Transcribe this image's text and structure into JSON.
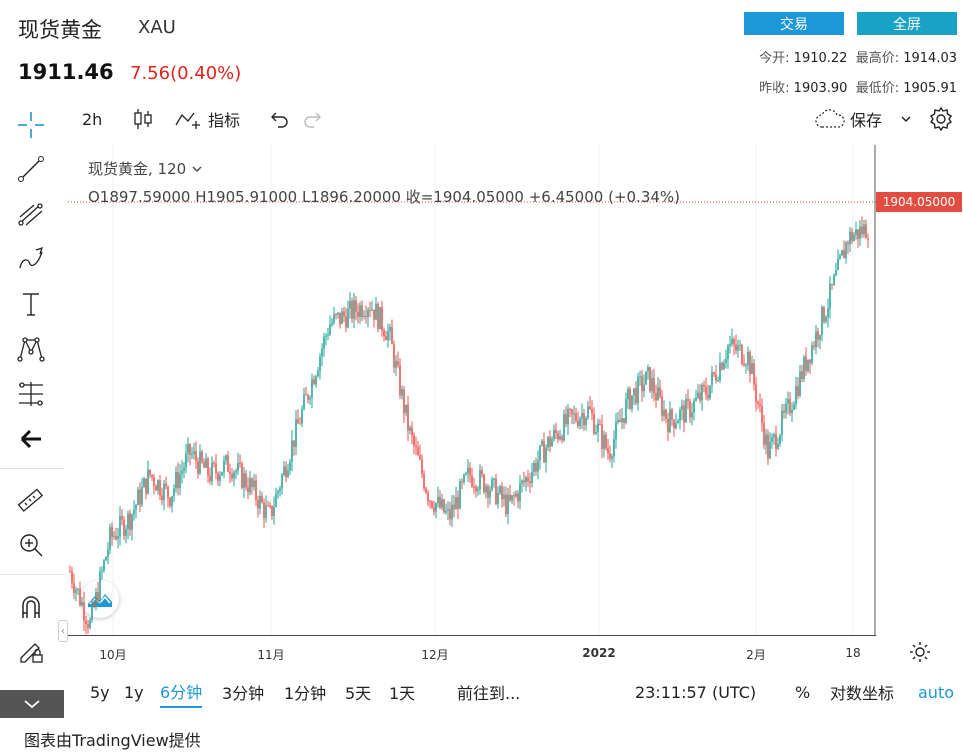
{
  "header": {
    "title": "现货黄金",
    "symbol": "XAU",
    "price": "1911.46",
    "change": "7.56(0.40%)",
    "trade_label": "交易",
    "fullscreen_label": "全屏",
    "open_label": "今开:",
    "open_value": "1910.22",
    "high_label": "最高价:",
    "high_value": "1914.03",
    "prev_close_label": "昨收:",
    "prev_close_value": "1903.90",
    "low_label": "最低价:",
    "low_value": "1905.91"
  },
  "toolbar": {
    "interval": "2h",
    "indicators_label": "指标",
    "save_label": "保存"
  },
  "left_tools": [
    "crosshair-icon",
    "trendline-icon",
    "fib-icon",
    "brush-icon",
    "text-icon",
    "pattern-icon",
    "forecast-icon",
    "back-arrow-icon",
    "ruler-icon",
    "zoom-in-icon",
    "magnet-icon",
    "lock-drawing-icon"
  ],
  "legend": {
    "name": "现货黄金, 120",
    "ohlc": "O1897.59000  H1905.91000  L1896.20000  收=1904.05000  +6.45000 (+0.34%)"
  },
  "last_price_label": "1904.05000",
  "time_ticks": [
    {
      "label": "10月",
      "bold": false
    },
    {
      "label": "11月",
      "bold": false
    },
    {
      "label": "12月",
      "bold": false
    },
    {
      "label": "2022",
      "bold": true
    },
    {
      "label": "2月",
      "bold": false
    },
    {
      "label": "18",
      "bold": false
    }
  ],
  "bottom": {
    "ranges": [
      "5y",
      "1y",
      "6分钟",
      "3分钟",
      "1分钟",
      "5天",
      "1天"
    ],
    "active_range": "6分钟",
    "goto_label": "前往到...",
    "clock": "23:11:57 (UTC)",
    "percent_label": "%",
    "log_label": "对数坐标",
    "auto_label": "auto"
  },
  "footer": "图表由TradingView提供",
  "colors": {
    "up": "#26a69a",
    "down": "#ef5350",
    "accent": "#1d98d6",
    "last_price": "#e14d41"
  },
  "chart_data": {
    "type": "candlestick",
    "title": "现货黄金, 120",
    "x_ticks": [
      "10月",
      "11月",
      "12月",
      "2022",
      "2月",
      "18"
    ],
    "approx_close_path": [
      1745,
      1720,
      1760,
      1770,
      1790,
      1780,
      1800,
      1790,
      1795,
      1785,
      1770,
      1800,
      1830,
      1860,
      1865,
      1870,
      1855,
      1810,
      1780,
      1770,
      1790,
      1785,
      1775,
      1790,
      1805,
      1815,
      1820,
      1800,
      1825,
      1835,
      1815,
      1820,
      1830,
      1850,
      1845,
      1800,
      1820,
      1845,
      1870,
      1900,
      1905
    ],
    "last_value": 1904.05,
    "y_range": [
      1720,
      1920
    ]
  }
}
